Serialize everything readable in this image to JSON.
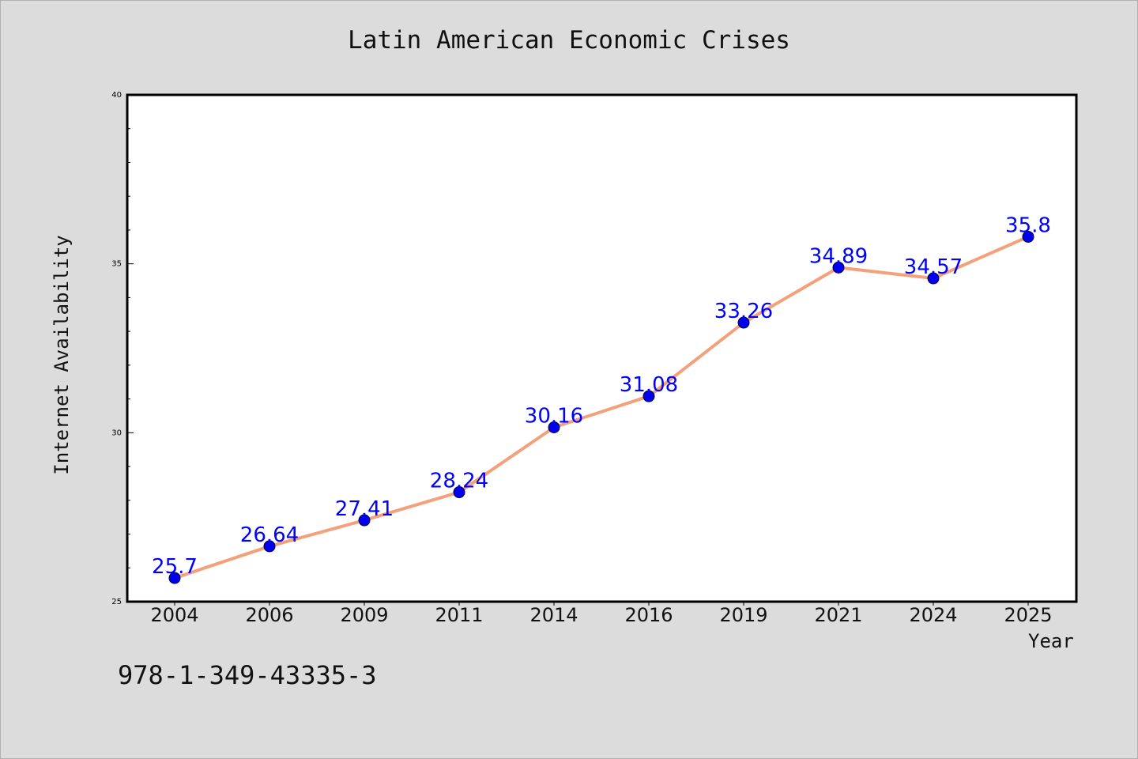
{
  "chart_data": {
    "type": "line",
    "title": "Latin American Economic Crises",
    "xlabel": "Year",
    "ylabel": "Internet Availability",
    "categories": [
      "2004",
      "2006",
      "2009",
      "2011",
      "2014",
      "2016",
      "2019",
      "2021",
      "2024",
      "2025"
    ],
    "series": [
      {
        "values": [
          25.7,
          26.64,
          27.41,
          28.24,
          30.16,
          31.08,
          33.26,
          34.89,
          34.57,
          35.8
        ],
        "data_labels": [
          "25.7",
          "26.64",
          "27.41",
          "28.24",
          "30.16",
          "31.08",
          "33.26",
          "34.89",
          "34.57",
          "35.8"
        ]
      }
    ],
    "ylim": [
      25,
      40
    ],
    "y_ticks": [
      25,
      30,
      35,
      40
    ],
    "y_tick_labels": [
      "25",
      "30",
      "35",
      "40"
    ],
    "grid": false,
    "line_color": "#f4a07a",
    "marker_color": "#0000ee",
    "label_color": "#0000ff"
  },
  "footer": {
    "code": "978-1-349-43335-3"
  }
}
